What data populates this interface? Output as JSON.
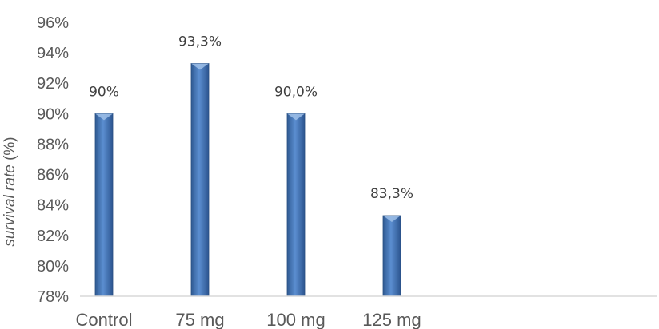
{
  "chart_data": {
    "type": "bar",
    "categories": [
      "Control",
      "75 mg",
      "100 mg",
      "125 mg"
    ],
    "values": [
      90.0,
      93.3,
      90.0,
      83.3
    ],
    "data_labels": [
      "90%",
      "93,3%",
      "90,0%",
      "83,3%"
    ],
    "title": "",
    "xlabel": "",
    "ylabel": "survival rate (%)",
    "ylabel_parts": {
      "italic": "survival rate",
      "plain": " (%)"
    },
    "ylim": [
      78,
      96
    ],
    "yticks": [
      78,
      80,
      82,
      84,
      86,
      88,
      90,
      92,
      94,
      96
    ],
    "ytick_labels": [
      "78%",
      "80%",
      "82%",
      "84%",
      "86%",
      "88%",
      "90%",
      "92%",
      "94%",
      "96%"
    ],
    "grid": false,
    "legend": "none",
    "colors": {
      "bar": "#4f81bd",
      "bar_dark": "#2f5a93",
      "bar_light": "#9fc0e8",
      "axis": "#d9d9d9",
      "text": "#595959"
    }
  }
}
